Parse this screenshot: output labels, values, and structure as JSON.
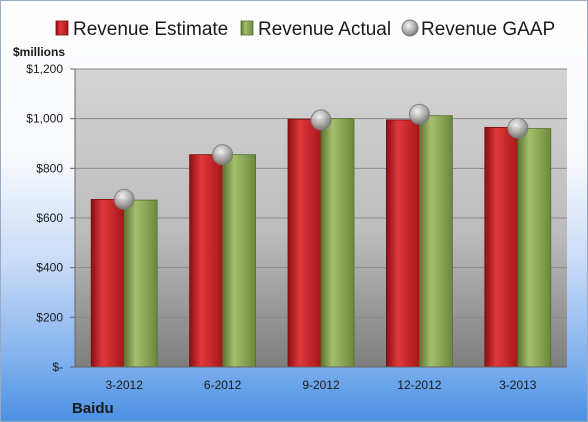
{
  "chart_data": {
    "type": "bar",
    "unit_label": "$millions",
    "company": "Baidu",
    "categories": [
      "3-2012",
      "6-2012",
      "9-2012",
      "12-2012",
      "3-2013"
    ],
    "series": [
      {
        "name": "Revenue Estimate",
        "kind": "bar",
        "color": "#d8262b",
        "values": [
          675,
          855,
          998,
          995,
          965
        ]
      },
      {
        "name": "Revenue Actual",
        "kind": "bar",
        "color": "#8fae57",
        "values": [
          672,
          855,
          1000,
          1012,
          960
        ]
      },
      {
        "name": "Revenue GAAP",
        "kind": "marker",
        "color": "#b5b5b5",
        "values": [
          675,
          855,
          995,
          1018,
          962
        ]
      }
    ],
    "ylim": [
      0,
      1200
    ],
    "yticks": [
      0,
      200,
      400,
      600,
      800,
      1000,
      1200
    ],
    "ytick_labels": [
      "$-",
      "$200",
      "$400",
      "$600",
      "$800",
      "$1,000",
      "$1,200"
    ],
    "grid": true,
    "legend_position": "top"
  }
}
